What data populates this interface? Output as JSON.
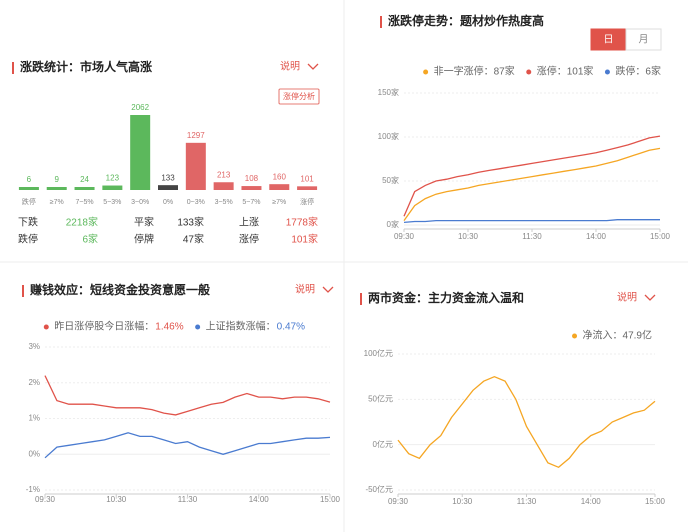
{
  "chart_data": [
    {
      "type": "bar",
      "title": "涨跌统计：市场人气高涨",
      "note": "说明",
      "button": "涨停分析",
      "categories": [
        "跌停",
        "≥7%",
        "7~5%",
        "5~3%",
        "3~0%",
        "0%",
        "0~3%",
        "3~5%",
        "5~7%",
        "≥7%",
        "涨停"
      ],
      "values": [
        6,
        9,
        24,
        123,
        2062,
        133,
        1297,
        213,
        108,
        160,
        101
      ],
      "colors": [
        "#5cb85c",
        "#5cb85c",
        "#5cb85c",
        "#5cb85c",
        "#5cb85c",
        "#444444",
        "#e06666",
        "#e06666",
        "#e06666",
        "#e06666",
        "#e06666"
      ],
      "stats": [
        [
          "下跌",
          "2218家",
          "平家",
          "133家",
          "上涨",
          "1778家"
        ],
        [
          "跌停",
          "6家",
          "停牌",
          "47家",
          "涨停",
          "101家"
        ]
      ],
      "stats_colors": [
        "#5cb85c",
        "#333333",
        "#e0534a"
      ]
    },
    {
      "type": "line",
      "title": "涨跌停走势：题材炒作热度高",
      "toggle": [
        "日",
        "月"
      ],
      "x": [
        "09:30",
        "09:40",
        "09:50",
        "10:00",
        "10:10",
        "10:20",
        "10:30",
        "10:40",
        "10:50",
        "11:00",
        "11:10",
        "11:20",
        "11:30",
        "13:10",
        "13:20",
        "13:30",
        "13:40",
        "13:50",
        "14:00",
        "14:10",
        "14:20",
        "14:30",
        "14:40",
        "14:50",
        "15:00"
      ],
      "xticks": [
        "09:30",
        "10:30",
        "11:30",
        "14:00",
        "15:00"
      ],
      "ylim": [
        0,
        150
      ],
      "yticks": [
        {
          "value": 0,
          "label": "0家"
        },
        {
          "value": 50,
          "label": "50家"
        },
        {
          "value": 100,
          "label": "100家"
        },
        {
          "value": 150,
          "label": "150家"
        }
      ],
      "series": [
        {
          "name": "非一字涨停：87家",
          "color": "#f5a623",
          "values": [
            5,
            22,
            30,
            35,
            38,
            40,
            42,
            45,
            47,
            49,
            51,
            53,
            55,
            57,
            59,
            61,
            63,
            65,
            67,
            70,
            73,
            77,
            81,
            85,
            87
          ]
        },
        {
          "name": "涨停：101家",
          "color": "#e0534a",
          "values": [
            10,
            38,
            45,
            50,
            52,
            55,
            57,
            60,
            62,
            64,
            66,
            68,
            70,
            72,
            74,
            76,
            78,
            80,
            82,
            85,
            88,
            91,
            95,
            99,
            101
          ]
        },
        {
          "name": "跌停：6家",
          "color": "#4a7bd0",
          "values": [
            3,
            4,
            4,
            5,
            5,
            5,
            5,
            5,
            5,
            5,
            5,
            5,
            5,
            5,
            5,
            5,
            5,
            5,
            5,
            5,
            6,
            6,
            6,
            6,
            6
          ]
        }
      ]
    },
    {
      "type": "line",
      "title": "赚钱效应：短线资金投资意愿一般",
      "note": "说明",
      "x": [
        "09:30",
        "09:40",
        "09:50",
        "10:00",
        "10:10",
        "10:20",
        "10:30",
        "10:40",
        "10:50",
        "11:00",
        "11:10",
        "11:20",
        "11:30",
        "13:10",
        "13:20",
        "13:30",
        "13:40",
        "13:50",
        "14:00",
        "14:10",
        "14:20",
        "14:30",
        "14:40",
        "14:50",
        "15:00"
      ],
      "xticks": [
        "09:30",
        "10:30",
        "11:30",
        "14:00",
        "15:00"
      ],
      "ylim": [
        -1,
        3
      ],
      "yticks": [
        {
          "value": -1,
          "label": "-1%"
        },
        {
          "value": 0,
          "label": "0%"
        },
        {
          "value": 1,
          "label": "1%"
        },
        {
          "value": 2,
          "label": "2%"
        },
        {
          "value": 3,
          "label": "3%"
        }
      ],
      "series": [
        {
          "name": "昨日涨停股今日涨幅：",
          "legend_value": "1.46%",
          "color": "#e0534a",
          "values": [
            2.2,
            1.5,
            1.4,
            1.4,
            1.4,
            1.35,
            1.3,
            1.3,
            1.3,
            1.25,
            1.15,
            1.1,
            1.2,
            1.3,
            1.4,
            1.45,
            1.6,
            1.7,
            1.6,
            1.6,
            1.55,
            1.6,
            1.6,
            1.55,
            1.46
          ]
        },
        {
          "name": "上证指数涨幅：",
          "legend_value": "0.47%",
          "color": "#4a7bd0",
          "values": [
            -0.1,
            0.2,
            0.25,
            0.3,
            0.35,
            0.4,
            0.5,
            0.6,
            0.5,
            0.5,
            0.4,
            0.3,
            0.35,
            0.2,
            0.1,
            0.0,
            0.1,
            0.2,
            0.3,
            0.3,
            0.35,
            0.4,
            0.45,
            0.45,
            0.47
          ]
        }
      ]
    },
    {
      "type": "line",
      "title": "两市资金：主力资金流入温和",
      "note": "说明",
      "x": [
        "09:30",
        "09:40",
        "09:50",
        "10:00",
        "10:10",
        "10:20",
        "10:30",
        "10:40",
        "10:50",
        "11:00",
        "11:10",
        "11:20",
        "11:30",
        "13:10",
        "13:20",
        "13:30",
        "13:40",
        "13:50",
        "14:00",
        "14:10",
        "14:20",
        "14:30",
        "14:40",
        "14:50",
        "15:00"
      ],
      "xticks": [
        "09:30",
        "10:30",
        "11:30",
        "14:00",
        "15:00"
      ],
      "ylim": [
        -50,
        100
      ],
      "yticks": [
        {
          "value": -50,
          "label": "-50亿元"
        },
        {
          "value": 0,
          "label": "0亿元"
        },
        {
          "value": 50,
          "label": "50亿元"
        },
        {
          "value": 100,
          "label": "100亿元"
        }
      ],
      "series": [
        {
          "name": "净流入：47.9亿",
          "color": "#f5a623",
          "values": [
            5,
            -10,
            -15,
            0,
            10,
            30,
            45,
            60,
            70,
            75,
            70,
            50,
            20,
            0,
            -20,
            -25,
            -15,
            0,
            10,
            15,
            25,
            30,
            35,
            38,
            47.9
          ]
        }
      ]
    }
  ]
}
